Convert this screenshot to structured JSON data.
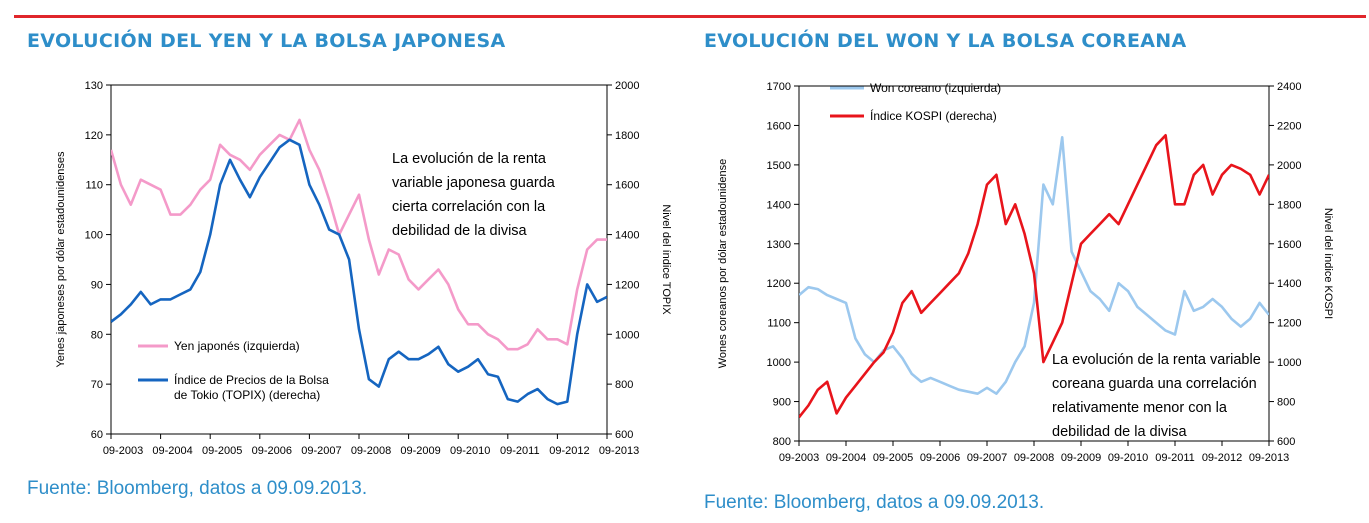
{
  "page": {
    "accent_color": "#e0262b",
    "title_color": "#2e8ec9",
    "left_title": "EVOLUCIÓN DEL YEN Y LA BOLSA JAPONESA",
    "right_title": "EVOLUCIÓN DEL WON Y LA BOLSA COREANA",
    "left_source": "Fuente: Bloomberg, datos a 09.09.2013.",
    "right_source": "Fuente: Bloomberg, datos a 09.09.2013."
  },
  "chart_data": [
    {
      "type": "line",
      "ylabel_left": "Yenes japoneses por dólar estadounidenses",
      "ylabel_right": "Nivel del índice TOPIX",
      "ylim_left": [
        60,
        130
      ],
      "ylim_right": [
        600,
        2000
      ],
      "yticks_left": [
        "60",
        "70",
        "80",
        "90",
        "100",
        "110",
        "120",
        "130"
      ],
      "yticks_right": [
        "600",
        "800",
        "1000",
        "1200",
        "1400",
        "1600",
        "1800",
        "2000"
      ],
      "x_ticks": [
        "09-2003",
        "09-2004",
        "09-2005",
        "09-2006",
        "09-2007",
        "09-2008",
        "09-2009",
        "09-2010",
        "09-2011",
        "09-2012",
        "09-2013"
      ],
      "grid": false,
      "legend_position": "bottom-left",
      "annotation": [
        "La evolución de la renta",
        "variable japonesa guarda",
        "cierta correlación con la",
        "debilidad de la divisa"
      ],
      "series": [
        {
          "name": "Yen japonés (izquierda)",
          "axis": "left",
          "color": "#f49ac9",
          "x": [
            2003.7,
            2003.9,
            2004.1,
            2004.3,
            2004.5,
            2004.7,
            2004.9,
            2005.1,
            2005.3,
            2005.5,
            2005.7,
            2005.9,
            2006.1,
            2006.3,
            2006.5,
            2006.7,
            2006.9,
            2007.1,
            2007.3,
            2007.5,
            2007.7,
            2007.9,
            2008.1,
            2008.3,
            2008.5,
            2008.7,
            2008.9,
            2009.1,
            2009.3,
            2009.5,
            2009.7,
            2009.9,
            2010.1,
            2010.3,
            2010.5,
            2010.7,
            2010.9,
            2011.1,
            2011.3,
            2011.5,
            2011.7,
            2011.9,
            2012.1,
            2012.3,
            2012.5,
            2012.7,
            2012.9,
            2013.1,
            2013.3,
            2013.5,
            2013.7
          ],
          "values": [
            117,
            110,
            106,
            111,
            110,
            109,
            104,
            104,
            106,
            109,
            111,
            118,
            116,
            115,
            113,
            116,
            118,
            120,
            119,
            123,
            117,
            113,
            107,
            100,
            104,
            108,
            99,
            92,
            97,
            96,
            91,
            89,
            91,
            93,
            90,
            85,
            82,
            82,
            80,
            79,
            77,
            77,
            78,
            81,
            79,
            79,
            78,
            89,
            97,
            99,
            99
          ]
        },
        {
          "name": "Índice de Precios de la Bolsa de Tokio (TOPIX) (derecha)",
          "axis": "right",
          "color": "#1565c0",
          "x": [
            2003.7,
            2003.9,
            2004.1,
            2004.3,
            2004.5,
            2004.7,
            2004.9,
            2005.1,
            2005.3,
            2005.5,
            2005.7,
            2005.9,
            2006.1,
            2006.3,
            2006.5,
            2006.7,
            2006.9,
            2007.1,
            2007.3,
            2007.5,
            2007.7,
            2007.9,
            2008.1,
            2008.3,
            2008.5,
            2008.7,
            2008.9,
            2009.1,
            2009.3,
            2009.5,
            2009.7,
            2009.9,
            2010.1,
            2010.3,
            2010.5,
            2010.7,
            2010.9,
            2011.1,
            2011.3,
            2011.5,
            2011.7,
            2011.9,
            2012.1,
            2012.3,
            2012.5,
            2012.7,
            2012.9,
            2013.1,
            2013.3,
            2013.5,
            2013.7
          ],
          "values": [
            1050,
            1080,
            1120,
            1170,
            1120,
            1140,
            1140,
            1160,
            1180,
            1250,
            1400,
            1600,
            1700,
            1620,
            1550,
            1630,
            1690,
            1750,
            1780,
            1760,
            1600,
            1520,
            1420,
            1400,
            1300,
            1020,
            820,
            790,
            900,
            930,
            900,
            900,
            920,
            950,
            880,
            850,
            870,
            900,
            840,
            830,
            740,
            730,
            760,
            780,
            740,
            720,
            730,
            1000,
            1200,
            1130,
            1150
          ]
        }
      ]
    },
    {
      "type": "line",
      "ylabel_left": "Wones coreanos por dólar  estadounidense",
      "ylabel_right": "Nivel del índice KOSPI",
      "ylim_left": [
        800,
        1700
      ],
      "ylim_right": [
        600,
        2400
      ],
      "yticks_left": [
        "800",
        "900",
        "1000",
        "1100",
        "1200",
        "1300",
        "1400",
        "1500",
        "1600",
        "1700"
      ],
      "yticks_right": [
        "600",
        "800",
        "1000",
        "1200",
        "1400",
        "1600",
        "1800",
        "2000",
        "2200",
        "2400"
      ],
      "x_ticks": [
        "09-2003",
        "09-2004",
        "09-2005",
        "09-2006",
        "09-2007",
        "09-2008",
        "09-2009",
        "09-2010",
        "09-2011",
        "09-2012",
        "09-2013"
      ],
      "grid": false,
      "legend_position": "top-left",
      "annotation": [
        "La evolución de la renta variable",
        "coreana guarda una correlación",
        "relativamente menor con la",
        "debilidad de la divisa"
      ],
      "series": [
        {
          "name": "Won coreano (izquierda)",
          "axis": "left",
          "color": "#9cc8ee",
          "x": [
            2003.7,
            2003.9,
            2004.1,
            2004.3,
            2004.5,
            2004.7,
            2004.9,
            2005.1,
            2005.3,
            2005.5,
            2005.7,
            2005.9,
            2006.1,
            2006.3,
            2006.5,
            2006.7,
            2006.9,
            2007.1,
            2007.3,
            2007.5,
            2007.7,
            2007.9,
            2008.1,
            2008.3,
            2008.5,
            2008.7,
            2008.9,
            2009.1,
            2009.3,
            2009.5,
            2009.7,
            2009.9,
            2010.1,
            2010.3,
            2010.5,
            2010.7,
            2010.9,
            2011.1,
            2011.3,
            2011.5,
            2011.7,
            2011.9,
            2012.1,
            2012.3,
            2012.5,
            2012.7,
            2012.9,
            2013.1,
            2013.3,
            2013.5,
            2013.7
          ],
          "values": [
            1170,
            1190,
            1185,
            1170,
            1160,
            1150,
            1060,
            1020,
            1000,
            1030,
            1040,
            1010,
            970,
            950,
            960,
            950,
            940,
            930,
            925,
            920,
            935,
            920,
            950,
            1000,
            1040,
            1150,
            1450,
            1400,
            1570,
            1280,
            1230,
            1180,
            1160,
            1130,
            1200,
            1180,
            1140,
            1120,
            1100,
            1080,
            1070,
            1180,
            1130,
            1140,
            1160,
            1140,
            1110,
            1090,
            1110,
            1150,
            1120
          ]
        },
        {
          "name": "Índice KOSPI (derecha)",
          "axis": "right",
          "color": "#e8141b",
          "x": [
            2003.7,
            2003.9,
            2004.1,
            2004.3,
            2004.5,
            2004.7,
            2004.9,
            2005.1,
            2005.3,
            2005.5,
            2005.7,
            2005.9,
            2006.1,
            2006.3,
            2006.5,
            2006.7,
            2006.9,
            2007.1,
            2007.3,
            2007.5,
            2007.7,
            2007.9,
            2008.1,
            2008.3,
            2008.5,
            2008.7,
            2008.9,
            2009.1,
            2009.3,
            2009.5,
            2009.7,
            2009.9,
            2010.1,
            2010.3,
            2010.5,
            2010.7,
            2010.9,
            2011.1,
            2011.3,
            2011.5,
            2011.7,
            2011.9,
            2012.1,
            2012.3,
            2012.5,
            2012.7,
            2012.9,
            2013.1,
            2013.3,
            2013.5,
            2013.7
          ],
          "values": [
            720,
            780,
            860,
            900,
            740,
            820,
            880,
            940,
            1000,
            1050,
            1150,
            1300,
            1360,
            1250,
            1300,
            1350,
            1400,
            1450,
            1550,
            1700,
            1900,
            1950,
            1700,
            1800,
            1650,
            1450,
            1000,
            1100,
            1200,
            1400,
            1600,
            1650,
            1700,
            1750,
            1700,
            1800,
            1900,
            2000,
            2100,
            2150,
            1800,
            1800,
            1950,
            2000,
            1850,
            1950,
            2000,
            1980,
            1950,
            1850,
            1950
          ]
        }
      ]
    }
  ]
}
